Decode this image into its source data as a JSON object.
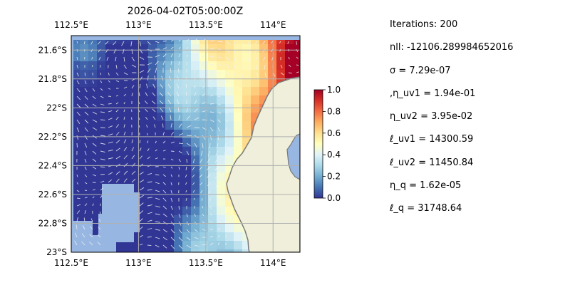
{
  "title": "2026-04-02T05:00:00Z",
  "chart_data": {
    "type": "heatmap",
    "title": "2026-04-02T05:00:00Z",
    "x_ticks": [
      "112.5°E",
      "113°E",
      "113.5°E",
      "114°E"
    ],
    "x_tick_values": [
      112.5,
      113.0,
      113.5,
      114.0
    ],
    "y_ticks": [
      "21.6°S",
      "21.8°S",
      "22°S",
      "22.2°S",
      "22.4°S",
      "22.6°S",
      "22.8°S",
      "23°S"
    ],
    "y_tick_values": [
      -21.6,
      -21.8,
      -22.0,
      -22.2,
      -22.4,
      -22.6,
      -22.8,
      -23.0
    ],
    "xlim": [
      112.5,
      114.2
    ],
    "ylim": [
      -23.0,
      -21.5
    ],
    "grid": true,
    "colorbar": {
      "ticks": [
        "0.0",
        "0.2",
        "0.4",
        "0.6",
        "0.8",
        "1.0"
      ],
      "tick_values": [
        0.0,
        0.2,
        0.4,
        0.6,
        0.8,
        1.0
      ],
      "range": [
        0,
        1
      ],
      "colormap": "RdYlBu_r"
    },
    "colors": {
      "ocean": "#97b6e1",
      "land": "#efefdb",
      "coast": "#7a7a7a",
      "vector": "#f0f0f0",
      "grid": "#b0b0b0"
    }
  },
  "stats": [
    "Iterations: 200",
    "nll: -12106.289984652016",
    "σ = 7.29e-07",
    ",η_uv1 = 1.94e-01",
    "η_uv2 = 3.95e-02",
    "ℓ_uv1 = 14300.59",
    "ℓ_uv2 = 11450.84",
    "η_q = 1.62e-05",
    "ℓ_q = 31748.64"
  ]
}
